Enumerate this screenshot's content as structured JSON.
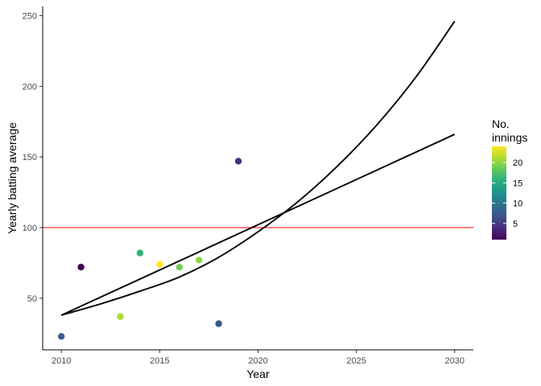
{
  "chart_data": {
    "type": "scatter",
    "title": "",
    "xlabel": "Year",
    "ylabel": "Yearly batting average",
    "xlim": [
      2009.05,
      2030.95
    ],
    "ylim": [
      13.5,
      256.5
    ],
    "x_ticks": [
      2010,
      2015,
      2020,
      2025,
      2030
    ],
    "y_ticks": [
      50,
      100,
      150,
      200,
      250
    ],
    "grid": false,
    "points": [
      {
        "x": 2010,
        "y": 23,
        "innings": 8
      },
      {
        "x": 2011,
        "y": 72,
        "innings": 1
      },
      {
        "x": 2013,
        "y": 37,
        "innings": 21
      },
      {
        "x": 2014,
        "y": 82,
        "innings": 16
      },
      {
        "x": 2015,
        "y": 74,
        "innings": 24
      },
      {
        "x": 2016,
        "y": 72,
        "innings": 19
      },
      {
        "x": 2017,
        "y": 77,
        "innings": 20
      },
      {
        "x": 2018,
        "y": 32,
        "innings": 7
      },
      {
        "x": 2019,
        "y": 147,
        "innings": 4
      }
    ],
    "reference_line": {
      "y": 100,
      "color": "#ff0000"
    },
    "trend_lines": [
      {
        "x": [
          2010,
          2030
        ],
        "y": [
          38,
          166
        ]
      },
      {
        "x": [
          2010,
          2012,
          2014,
          2016,
          2018,
          2020,
          2022,
          2024,
          2026,
          2028,
          2030
        ],
        "y": [
          38,
          46,
          55,
          65,
          79,
          97,
          118,
          143,
          172,
          206,
          246
        ]
      }
    ],
    "legend": {
      "title": "No.\ninnings",
      "title_lines": [
        "No.",
        "innings"
      ],
      "ticks": [
        5,
        10,
        15,
        20
      ],
      "range": [
        1,
        24
      ],
      "placement": "right"
    }
  }
}
